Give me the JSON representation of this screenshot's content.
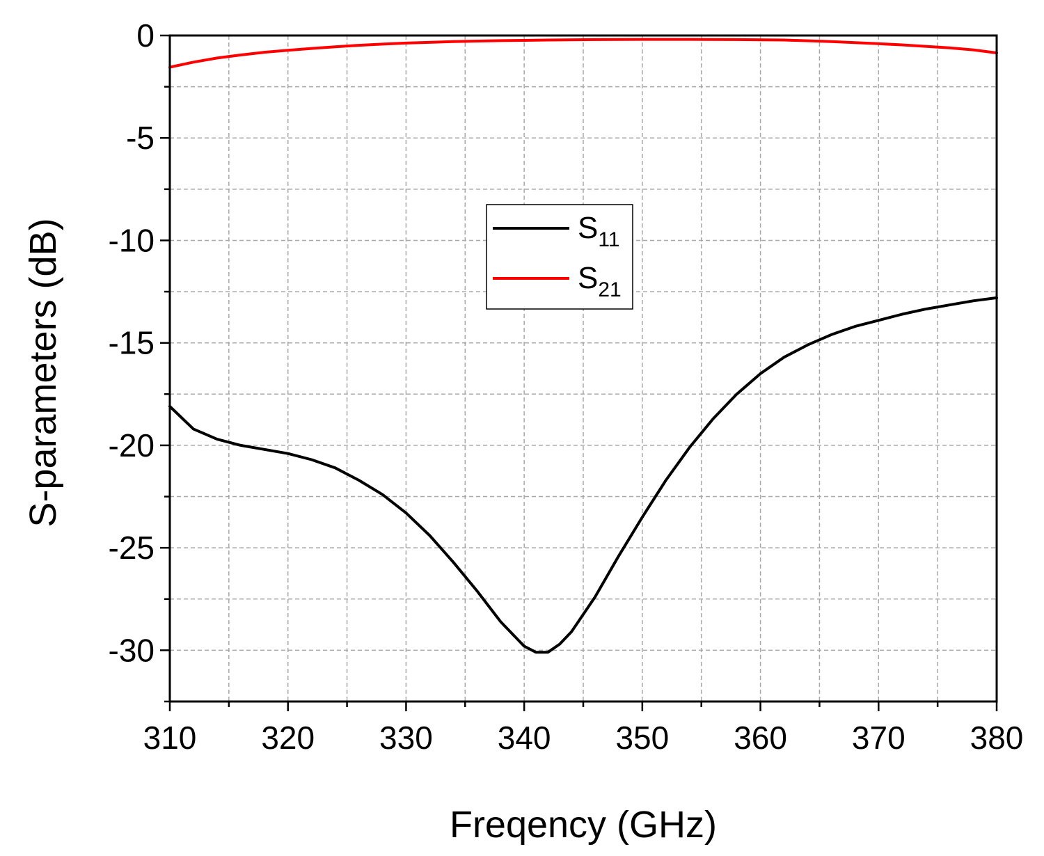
{
  "chart_data": {
    "type": "line",
    "title": "",
    "xlabel": "Freqency (GHz)",
    "ylabel": "S-parameters (dB)",
    "xlim": [
      310,
      380
    ],
    "ylim": [
      -32.5,
      0
    ],
    "x_ticks": [
      310,
      320,
      330,
      340,
      350,
      360,
      370,
      380
    ],
    "y_ticks": [
      0,
      -5,
      -10,
      -15,
      -20,
      -25,
      -30
    ],
    "x_tick_labels": [
      "310",
      "320",
      "330",
      "340",
      "350",
      "360",
      "370",
      "380"
    ],
    "y_tick_labels": [
      "0",
      "-5",
      "-10",
      "-15",
      "-20",
      "-25",
      "-30"
    ],
    "grid": true,
    "legend_position": "center",
    "series": [
      {
        "name": "S11",
        "legend_main": "S",
        "legend_sub": "11",
        "color": "#000000",
        "x": [
          310,
          312,
          314,
          316,
          318,
          320,
          322,
          324,
          326,
          328,
          330,
          332,
          334,
          336,
          338,
          340,
          341,
          342,
          343,
          344,
          346,
          348,
          350,
          352,
          354,
          356,
          358,
          360,
          362,
          364,
          366,
          368,
          370,
          372,
          374,
          376,
          378,
          380
        ],
        "y": [
          -18.1,
          -19.2,
          -19.7,
          -20.0,
          -20.2,
          -20.4,
          -20.7,
          -21.1,
          -21.7,
          -22.4,
          -23.3,
          -24.4,
          -25.7,
          -27.1,
          -28.6,
          -29.8,
          -30.1,
          -30.1,
          -29.7,
          -29.1,
          -27.4,
          -25.4,
          -23.5,
          -21.7,
          -20.1,
          -18.7,
          -17.5,
          -16.5,
          -15.7,
          -15.1,
          -14.6,
          -14.2,
          -13.9,
          -13.6,
          -13.35,
          -13.15,
          -12.95,
          -12.8
        ]
      },
      {
        "name": "S21",
        "legend_main": "S",
        "legend_sub": "21",
        "color": "#ff0000",
        "x": [
          310,
          312,
          314,
          316,
          318,
          320,
          322,
          324,
          326,
          328,
          330,
          334,
          338,
          342,
          346,
          350,
          354,
          358,
          362,
          366,
          370,
          372,
          374,
          376,
          378,
          380
        ],
        "y": [
          -1.55,
          -1.3,
          -1.1,
          -0.95,
          -0.82,
          -0.72,
          -0.63,
          -0.55,
          -0.48,
          -0.42,
          -0.37,
          -0.3,
          -0.25,
          -0.22,
          -0.2,
          -0.19,
          -0.19,
          -0.2,
          -0.22,
          -0.3,
          -0.4,
          -0.46,
          -0.53,
          -0.6,
          -0.7,
          -0.85
        ]
      }
    ]
  }
}
